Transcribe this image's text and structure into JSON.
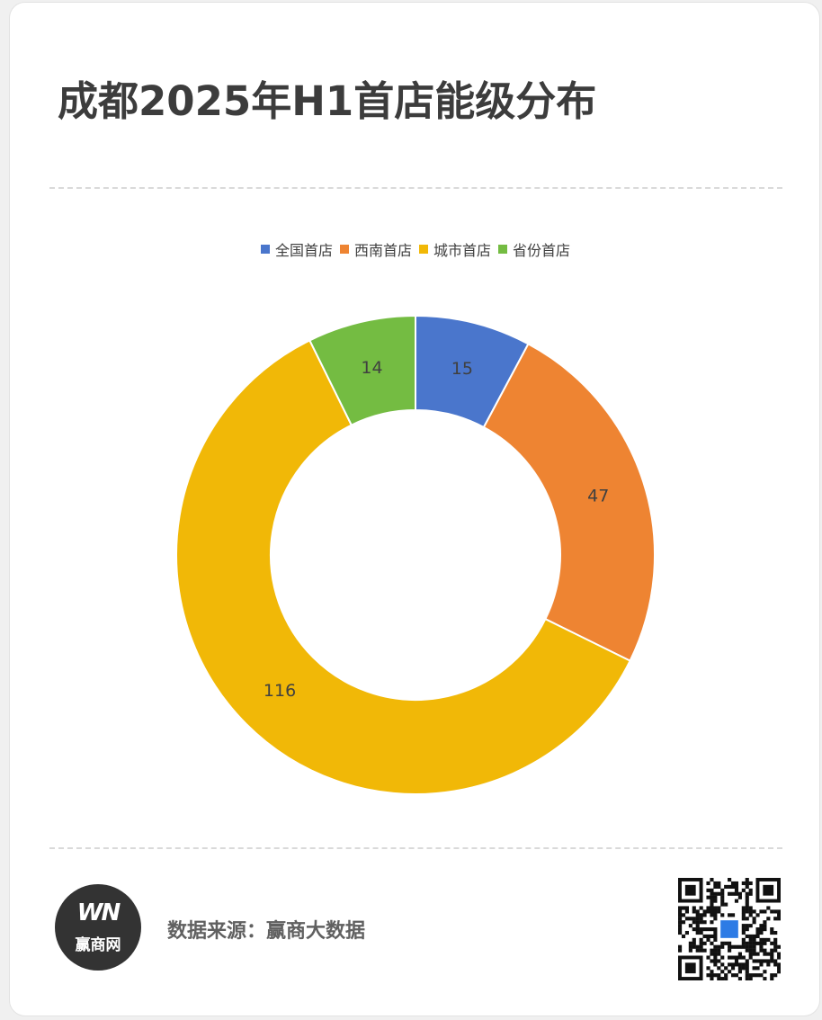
{
  "title": "成都2025年H1首店能级分布",
  "footer": {
    "source_label": "数据来源：赢商大数据",
    "logo_mark": "WN",
    "logo_name": "赢商网"
  },
  "chart_data": {
    "type": "pie",
    "variant": "donut",
    "title": "成都2025年H1首店能级分布",
    "legend_position": "top",
    "categories": [
      "全国首店",
      "西南首店",
      "城市首店",
      "省份首店"
    ],
    "values": [
      15,
      47,
      116,
      14
    ],
    "colors": [
      "#4a76cc",
      "#ee8432",
      "#f1b807",
      "#74bc42"
    ],
    "data_labels": [
      "15",
      "47",
      "116",
      "14"
    ]
  }
}
